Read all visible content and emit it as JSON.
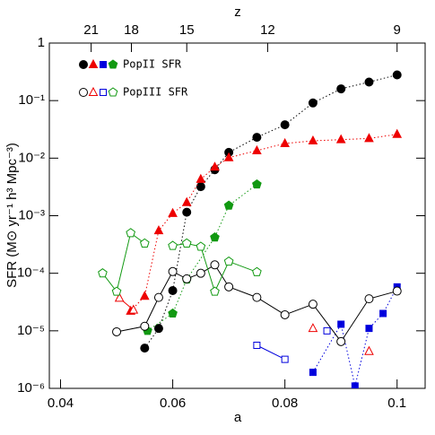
{
  "chart_data": {
    "type": "line",
    "log_y": true,
    "xlabel": "a",
    "ylabel": "SFR (M⊙ yr⁻¹ h³ Mpc⁻³)",
    "x2label": "z",
    "xlim": [
      0.038,
      0.105
    ],
    "xticks": [
      0.04,
      0.06,
      0.08,
      0.1
    ],
    "ylim": [
      1e-06,
      1
    ],
    "yticks": [
      {
        "value": 1e-06,
        "label": "10⁻⁶"
      },
      {
        "value": 1e-05,
        "label": "10⁻⁵"
      },
      {
        "value": 0.0001,
        "label": "10⁻⁴"
      },
      {
        "value": 0.001,
        "label": "10⁻³"
      },
      {
        "value": 0.01,
        "label": "10⁻²"
      },
      {
        "value": 0.1,
        "label": "10⁻¹"
      },
      {
        "value": 1,
        "label": "1"
      }
    ],
    "x2ticks": [
      21,
      18,
      15,
      12,
      9
    ],
    "legend": "upper left",
    "series": [
      {
        "name": "PopII SFR",
        "filled": true,
        "lines": [
          {
            "color": "#000000",
            "marker": "circle",
            "x": [
              0.055,
              0.0575,
              0.06,
              0.0625,
              0.065,
              0.0675,
              0.07,
              0.075,
              0.08,
              0.085,
              0.09,
              0.095,
              0.1
            ],
            "values": [
              5e-06,
              1.1e-05,
              5e-05,
              0.00115,
              0.0032,
              0.0063,
              0.0126,
              0.023,
              0.038,
              0.091,
              0.16,
              0.21,
              0.28
            ]
          },
          {
            "color": "#ee0000",
            "marker": "triangle",
            "x": [
              0.0525,
              0.055,
              0.0575,
              0.06,
              0.0625,
              0.065,
              0.0675,
              0.07,
              0.075,
              0.08,
              0.085,
              0.09,
              0.095,
              0.1
            ],
            "values": [
              2.2e-05,
              4e-05,
              0.00055,
              0.0011,
              0.0017,
              0.0043,
              0.007,
              0.0102,
              0.0135,
              0.018,
              0.02,
              0.021,
              0.022,
              0.026
            ]
          },
          {
            "color": "#0000dd",
            "marker": "square",
            "x": [
              0.085,
              0.09,
              0.0925,
              0.095,
              0.0975,
              0.1
            ],
            "values": [
              1.9e-06,
              1.3e-05,
              1.1e-06,
              1.1e-05,
              2e-05,
              5.8e-05
            ]
          },
          {
            "color": "#119911",
            "marker": "pentagon",
            "x": [
              0.0555,
              0.06,
              0.0625,
              0.0675,
              0.07,
              0.075
            ],
            "values": [
              1e-05,
              2e-05,
              7.8e-05,
              0.00042,
              0.0015,
              0.0035
            ]
          }
        ]
      },
      {
        "name": "PopIII SFR",
        "filled": false,
        "lines": [
          {
            "color": "#000000",
            "marker": "circle",
            "x": [
              0.05,
              0.055,
              0.0575,
              0.06,
              0.0625,
              0.065,
              0.0675,
              0.07,
              0.075,
              0.08,
              0.085,
              0.09,
              0.095,
              0.1
            ],
            "values": [
              9.6e-06,
              1.2e-05,
              3.8e-05,
              0.000107,
              8e-05,
              0.0001,
              0.00014,
              5.8e-05,
              3.8e-05,
              1.9e-05,
              2.9e-05,
              6.5e-06,
              3.6e-05,
              4.9e-05
            ]
          },
          {
            "color": "#ee0000",
            "marker": "triangle",
            "x": [
              0.0505,
              0.053,
              null,
              0.085,
              null,
              0.095
            ],
            "values": [
              3.7e-05,
              2.3e-05,
              null,
              1.1e-05,
              null,
              4.4e-06
            ]
          },
          {
            "color": "#0000dd",
            "marker": "square",
            "x": [
              0.075,
              0.08,
              null,
              0.0875
            ],
            "values": [
              5.6e-06,
              3.2e-06,
              null,
              1e-05
            ]
          },
          {
            "color": "#119911",
            "marker": "pentagon",
            "x": [
              0.0475,
              0.05,
              0.0525,
              0.055,
              null,
              0.06,
              0.0625,
              0.065,
              0.0675,
              0.07,
              0.075
            ],
            "values": [
              0.0001,
              4.8e-05,
              0.0005,
              0.00033,
              null,
              0.0003,
              0.00033,
              0.00029,
              4.8e-05,
              0.00016,
              0.000105
            ]
          }
        ]
      }
    ]
  }
}
